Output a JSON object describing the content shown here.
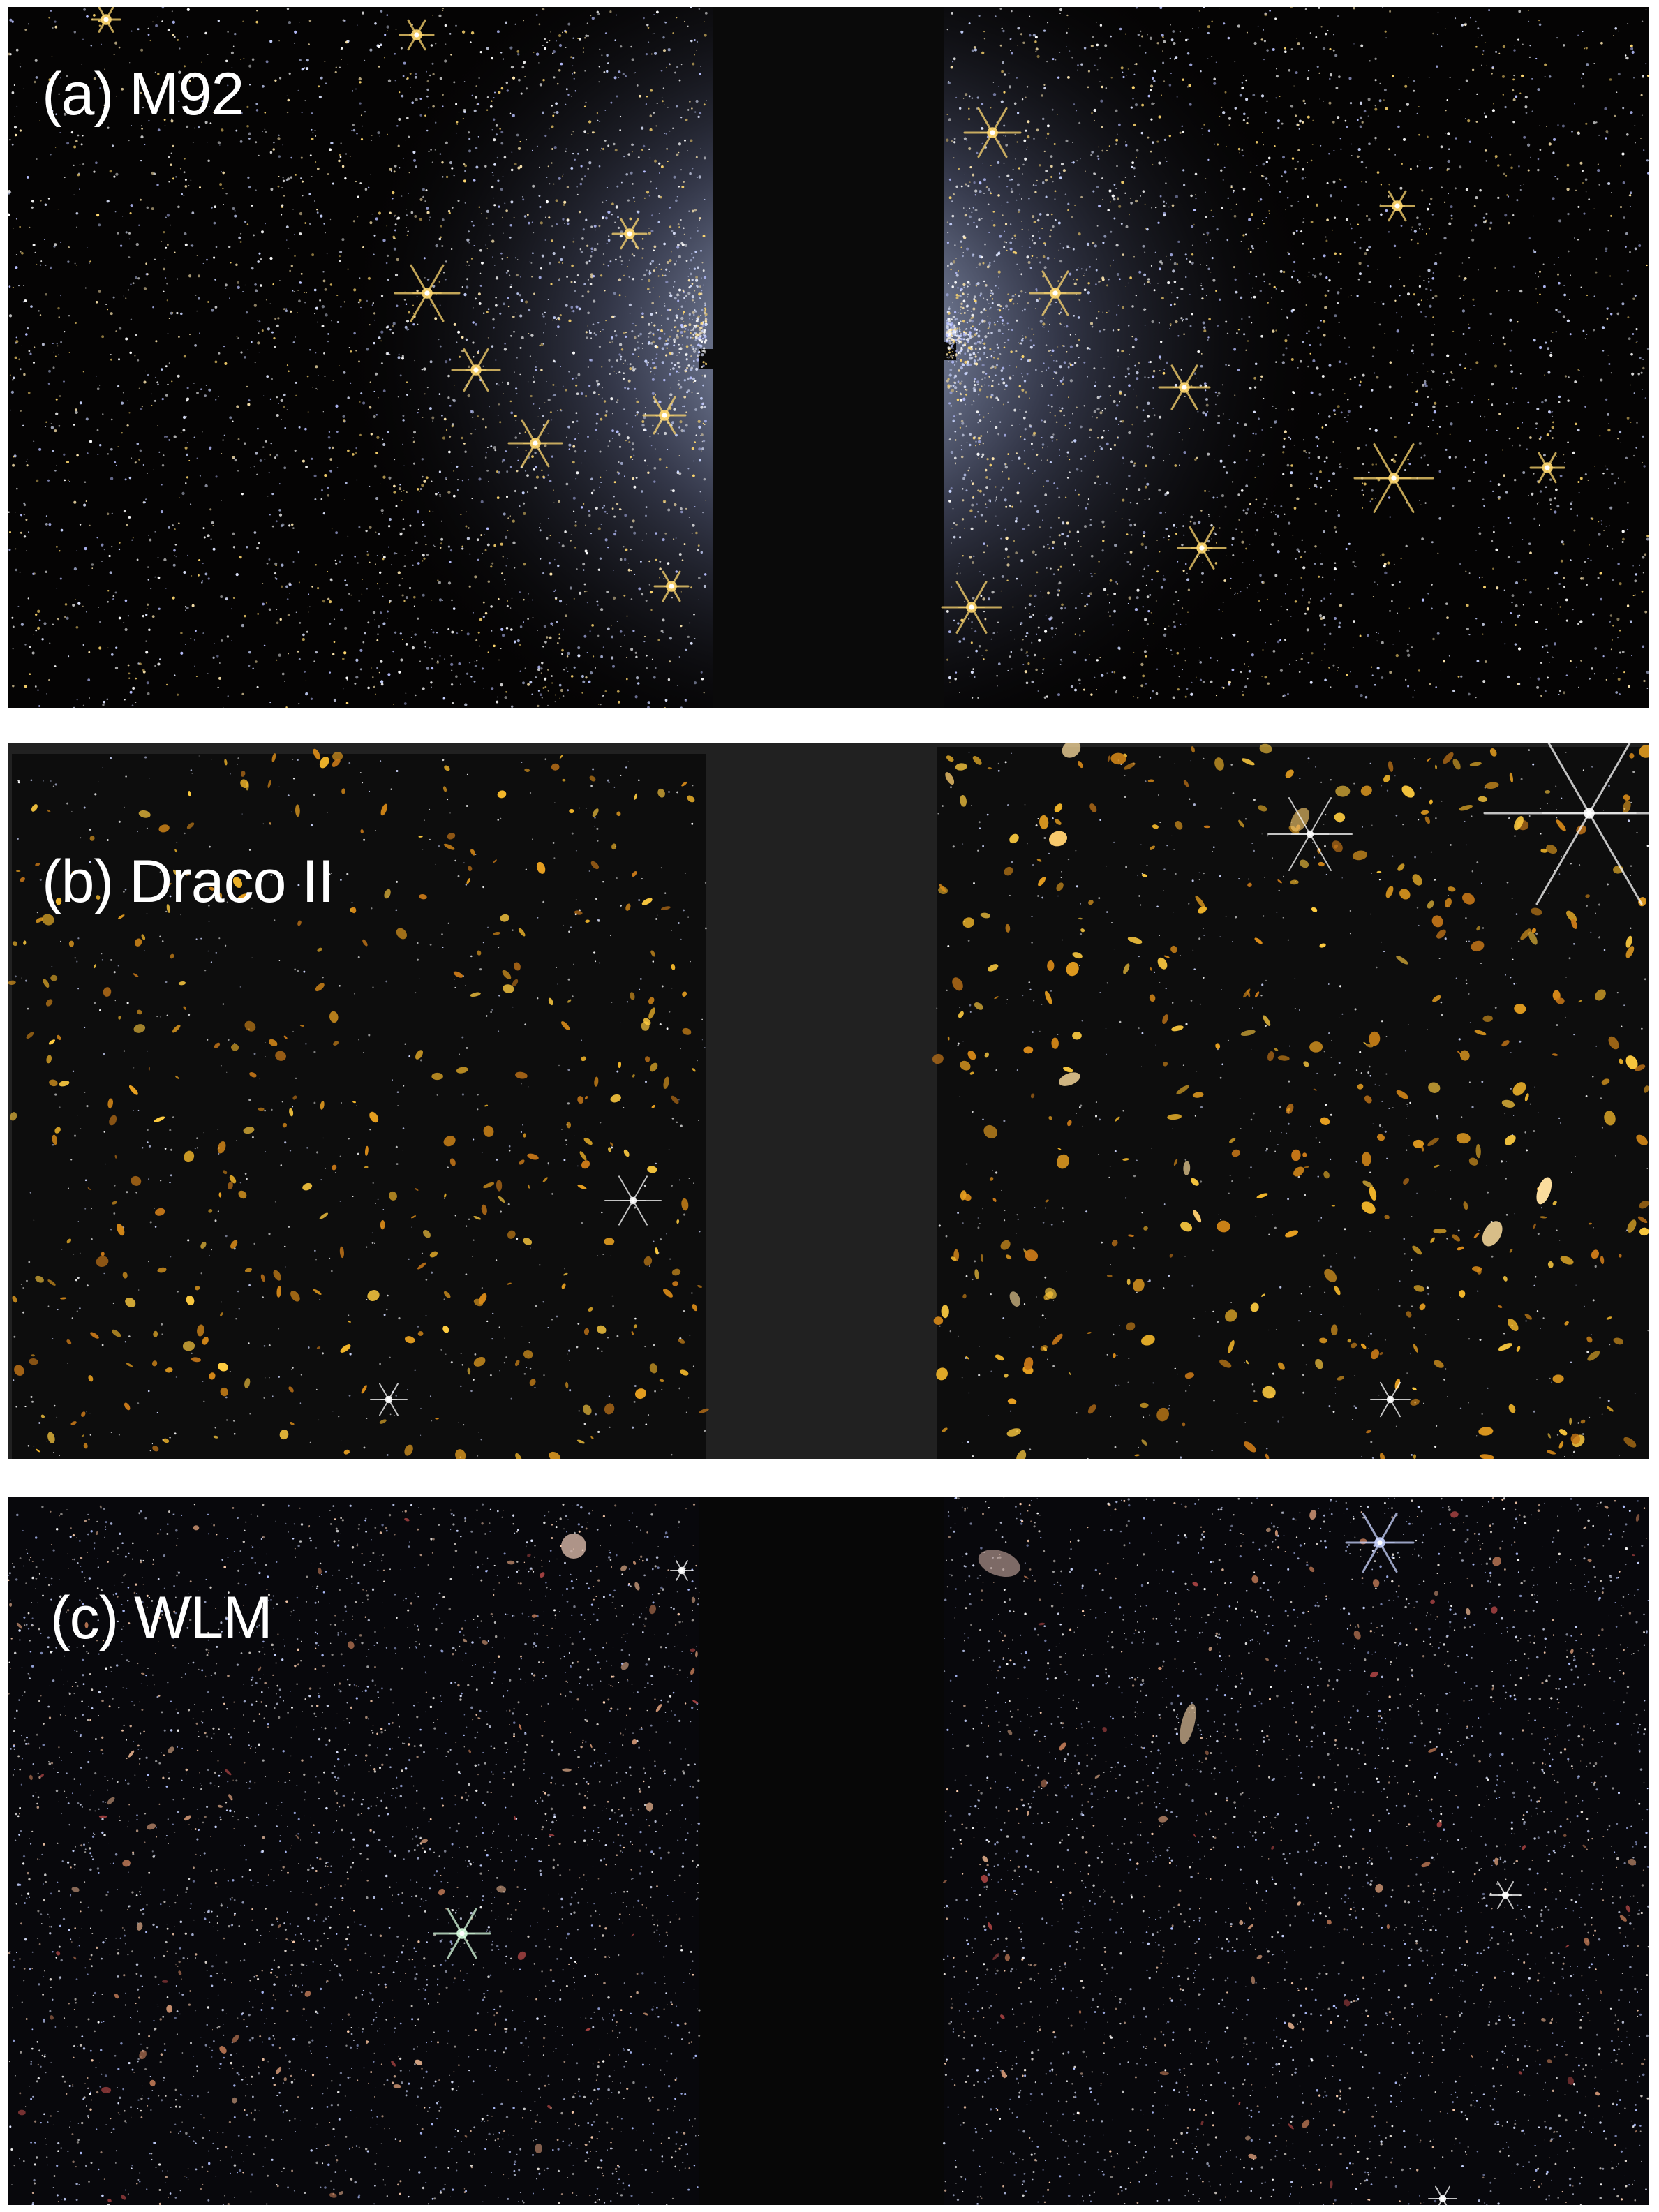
{
  "figure": {
    "panels": [
      {
        "id": "m92",
        "label": "(a) M92",
        "field": "dense-globular-cluster",
        "background": "#050404",
        "gap_color": "#0a0a0a"
      },
      {
        "id": "draco",
        "label": "(b) Draco II",
        "field": "sparse-galaxy-field",
        "background": "#0d0d0d",
        "gap_color": "#212121"
      },
      {
        "id": "wlm",
        "label": "(c) WLM",
        "field": "dwarf-galaxy-field",
        "background": "#08080c",
        "gap_color": "#070707"
      }
    ],
    "colors": {
      "star_gold": "#ffd870",
      "star_blue": "#c8d4ff",
      "galaxy_orange": "#e8a020",
      "star_white": "#ffffff"
    }
  }
}
